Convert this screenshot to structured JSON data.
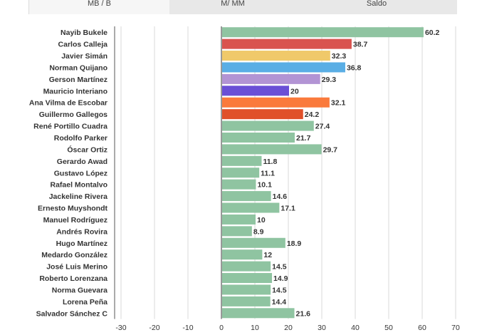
{
  "tabs": [
    "MB / B",
    "M/ MM",
    "Saldo"
  ],
  "colors": {
    "default": "#8fc4a1",
    "grid": "#d8d8d8",
    "axis": "#555555"
  },
  "chart_data": {
    "type": "bar",
    "orientation": "horizontal",
    "title": "",
    "xlabel": "",
    "ylabel": "",
    "xlim": [
      -30,
      70
    ],
    "x_ticks": [
      -30,
      -20,
      -10,
      0,
      10,
      20,
      30,
      40,
      50,
      60,
      70
    ],
    "grid": true,
    "categories": [
      "Nayib Bukele",
      "Carlos Calleja",
      "Javier Simán",
      "Norman Quijano",
      "Gerson Martínez",
      "Mauricio Interiano",
      "Ana Vilma de Escobar",
      "Guillermo Gallegos",
      "René Portillo Cuadra",
      "Rodolfo Parker",
      "Óscar Ortiz",
      "Gerardo Awad",
      "Gustavo López",
      "Rafael Montalvo",
      "Jackeline Rivera",
      "Ernesto Muyshondt",
      "Manuel Rodríguez",
      "Andrés Rovira",
      "Hugo Martínez",
      "Medardo González",
      "José Luis Merino",
      "Roberto Lorenzana",
      "Norma Guevara",
      "Lorena Peña",
      "Salvador Sánchez C"
    ],
    "values": [
      60.2,
      38.7,
      32.3,
      36.8,
      29.3,
      20,
      32.1,
      24.2,
      27.4,
      21.7,
      29.7,
      11.8,
      11.1,
      10.1,
      14.6,
      17.1,
      10,
      8.9,
      18.9,
      12,
      14.5,
      14.9,
      14.5,
      14.4,
      21.6
    ],
    "labels": [
      "60.2",
      "38.7",
      "32.3",
      "36.8",
      "29.3",
      "20",
      "32.1",
      "24.2",
      "27.4",
      "21.7",
      "29.7",
      "11.8",
      "11.1",
      "10.1",
      "14.6",
      "17.1",
      "10",
      "8.9",
      "18.9",
      "12",
      "14.5",
      "14.9",
      "14.5",
      "14.4",
      "21.6"
    ],
    "bar_colors": [
      "#8fc4a1",
      "#d9534f",
      "#f0c96a",
      "#5aaee5",
      "#b294d4",
      "#6a4fd6",
      "#fa7a3c",
      "#e0502a",
      "#8fc4a1",
      "#8fc4a1",
      "#8fc4a1",
      "#8fc4a1",
      "#8fc4a1",
      "#8fc4a1",
      "#8fc4a1",
      "#8fc4a1",
      "#8fc4a1",
      "#8fc4a1",
      "#8fc4a1",
      "#8fc4a1",
      "#8fc4a1",
      "#8fc4a1",
      "#8fc4a1",
      "#8fc4a1",
      "#8fc4a1"
    ]
  }
}
